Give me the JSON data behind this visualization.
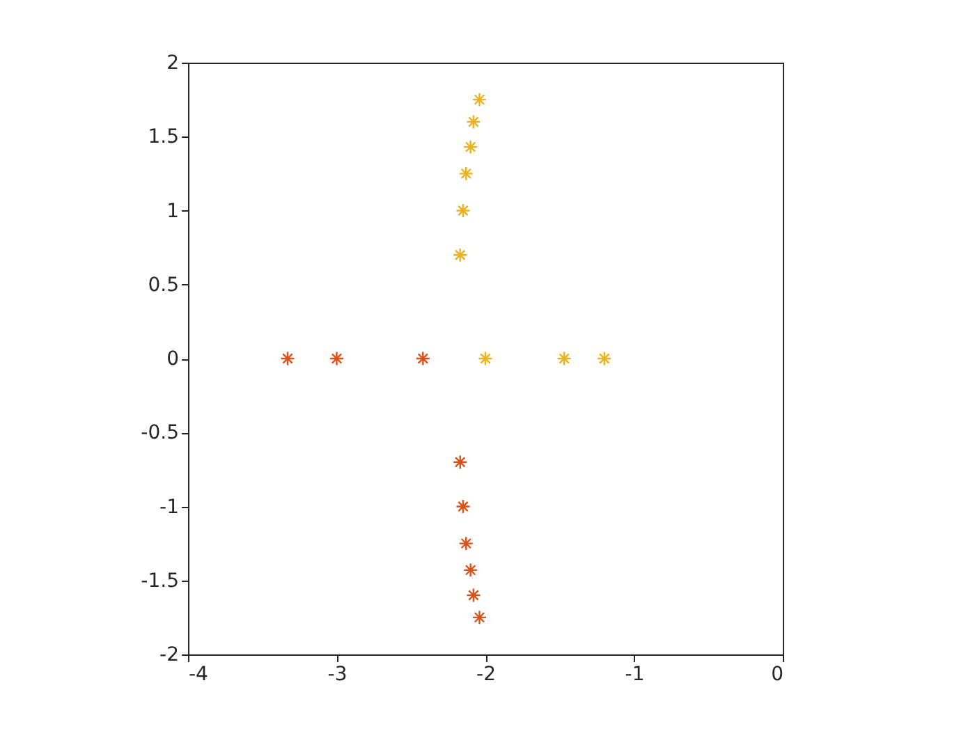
{
  "chart_data": {
    "type": "scatter",
    "marker": "cross",
    "grid": false,
    "xlim": [
      -4,
      0
    ],
    "xticks": [
      -4,
      -3,
      -2,
      -1,
      0
    ],
    "ylim": [
      -2,
      2
    ],
    "yticks": [
      -2,
      -1.5,
      -1,
      -0.5,
      0,
      0.5,
      1,
      1.5,
      2
    ],
    "series": [
      {
        "color": "#d95319",
        "x": [
          -3.33,
          -3.0,
          -2.42,
          -2.17,
          -2.15,
          -2.13,
          -2.1,
          -2.08,
          -2.04
        ],
        "values": [
          0,
          0,
          0,
          -0.7,
          -1.0,
          -1.25,
          -1.43,
          -1.6,
          -1.75
        ]
      },
      {
        "color": "#edb120",
        "x": [
          -2.0,
          -1.47,
          -1.2,
          -2.17,
          -2.15,
          -2.13,
          -2.1,
          -2.08,
          -2.04
        ],
        "values": [
          0,
          0,
          0,
          0.7,
          1.0,
          1.25,
          1.43,
          1.6,
          1.75
        ]
      }
    ]
  }
}
